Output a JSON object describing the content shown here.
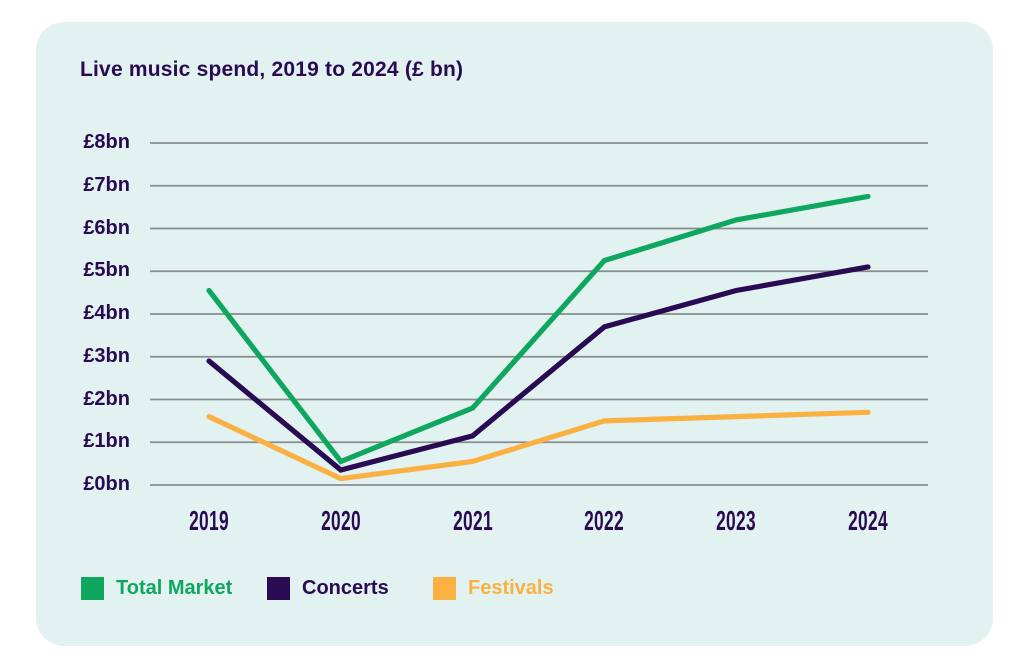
{
  "title": "Live music spend, 2019 to 2024 (£ bn)",
  "colors": {
    "card_background": "#E1F2F1",
    "page_background": "#FFFFFF",
    "text_dark_purple": "#2A0A52",
    "gridline": "#878D8C",
    "series_green": "#0FA75F",
    "series_purple": "#2A0A52",
    "series_orange": "#FBB042"
  },
  "chart_data": {
    "type": "line",
    "title": "Live music spend, 2019 to 2024 (£ bn)",
    "x": [
      "2019",
      "2020",
      "2021",
      "2022",
      "2023",
      "2024"
    ],
    "series": [
      {
        "name": "Total Market",
        "color": "#0FA75F",
        "values": [
          4.55,
          0.55,
          1.8,
          5.25,
          6.2,
          6.75
        ]
      },
      {
        "name": "Concerts",
        "color": "#2A0A52",
        "values": [
          2.9,
          0.35,
          1.15,
          3.7,
          4.55,
          5.1
        ]
      },
      {
        "name": "Festivals",
        "color": "#FBB042",
        "values": [
          1.6,
          0.15,
          0.55,
          1.5,
          1.6,
          1.7
        ]
      }
    ],
    "xlabel": "",
    "ylabel": "",
    "ylim": [
      0,
      8
    ],
    "y_ticks": [
      {
        "value": 0,
        "label": "£0bn"
      },
      {
        "value": 1,
        "label": "£1bn"
      },
      {
        "value": 2,
        "label": "£2bn"
      },
      {
        "value": 3,
        "label": "£3bn"
      },
      {
        "value": 4,
        "label": "£4bn"
      },
      {
        "value": 5,
        "label": "£5bn"
      },
      {
        "value": 6,
        "label": "£6bn"
      },
      {
        "value": 7,
        "label": "£7bn"
      },
      {
        "value": 8,
        "label": "£8bn"
      }
    ],
    "grid": true,
    "legend_position": "bottom-left"
  }
}
